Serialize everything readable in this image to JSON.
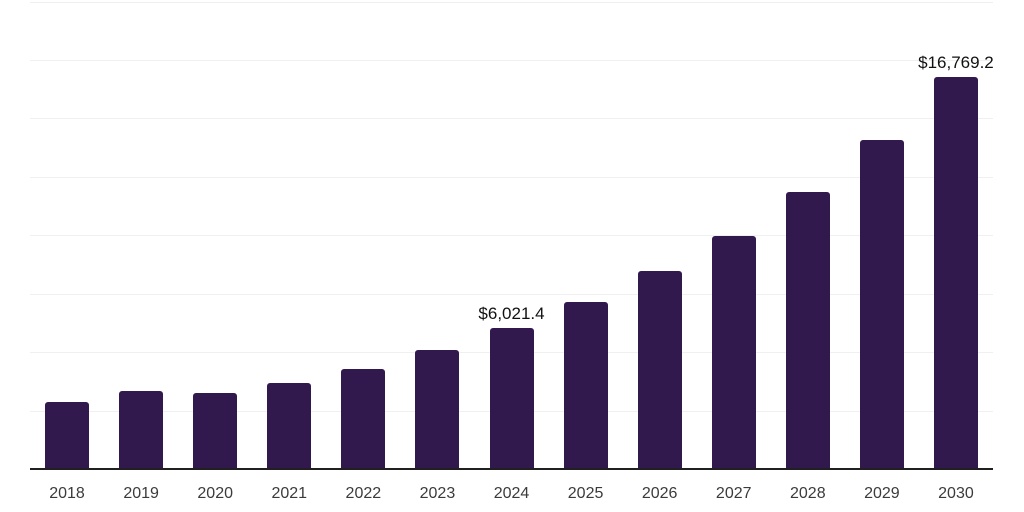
{
  "chart_data": {
    "type": "bar",
    "title": "",
    "xlabel": "",
    "ylabel": "",
    "categories": [
      "2018",
      "2019",
      "2020",
      "2021",
      "2022",
      "2023",
      "2024",
      "2025",
      "2026",
      "2027",
      "2028",
      "2029",
      "2030"
    ],
    "values": [
      2865,
      3335,
      3240,
      3680,
      4290,
      5080,
      6021.4,
      7125,
      8490,
      9980,
      11855,
      14090,
      16769.2
    ],
    "data_labels": {
      "2024": "$6,021.4",
      "2030": "$16,769.2"
    },
    "ylim": [
      0,
      20000
    ],
    "gridline_step": 2500,
    "grid": "horizontal-only",
    "legend": "none",
    "y_tick_labels": "none",
    "colors": {
      "bar": "#31194d",
      "gridline": "#f0f0f1",
      "axis_line": "#202020",
      "x_tick_label": "#3b3b3b",
      "data_label": "#111111",
      "background": "#ffffff"
    }
  }
}
